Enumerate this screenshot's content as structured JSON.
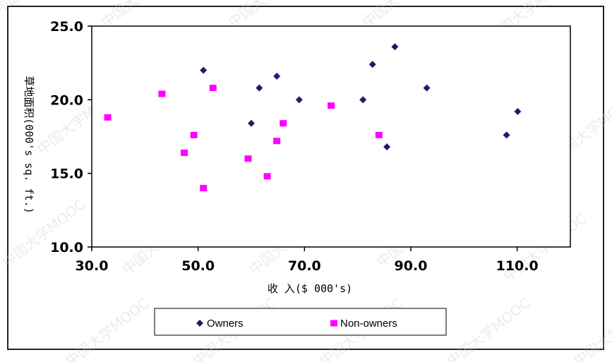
{
  "chart_data": {
    "type": "scatter",
    "title": "",
    "xlabel": "收 入($ 000's)",
    "ylabel": "草地面积(000's sq. ft.)",
    "xlim": [
      30,
      120
    ],
    "ylim": [
      10,
      25
    ],
    "xticks": [
      "30.0",
      "50.0",
      "70.0",
      "90.0",
      "110.0"
    ],
    "yticks": [
      "10.0",
      "15.0",
      "20.0",
      "25.0"
    ],
    "xtick_values": [
      30,
      50,
      70,
      90,
      110
    ],
    "ytick_values": [
      10,
      15,
      20,
      25
    ],
    "grid": false,
    "legend_position": "bottom",
    "series": [
      {
        "name": "Owners",
        "marker": "diamond",
        "color": "#1f1a6e",
        "points": [
          [
            51.0,
            22.0
          ],
          [
            60.0,
            18.4
          ],
          [
            61.5,
            20.8
          ],
          [
            64.8,
            21.6
          ],
          [
            69.0,
            20.0
          ],
          [
            81.0,
            20.0
          ],
          [
            82.8,
            22.4
          ],
          [
            85.5,
            16.8
          ],
          [
            87.0,
            23.6
          ],
          [
            93.0,
            20.8
          ],
          [
            108.0,
            17.6
          ],
          [
            110.1,
            19.2
          ]
        ]
      },
      {
        "name": "Non-owners",
        "marker": "square",
        "color": "#ff00ff",
        "points": [
          [
            33.0,
            18.8
          ],
          [
            43.2,
            20.4
          ],
          [
            47.4,
            16.4
          ],
          [
            49.2,
            17.6
          ],
          [
            51.0,
            14.0
          ],
          [
            52.8,
            20.8
          ],
          [
            59.4,
            16.0
          ],
          [
            63.0,
            14.8
          ],
          [
            64.8,
            17.2
          ],
          [
            66.0,
            18.4
          ],
          [
            75.0,
            19.6
          ],
          [
            84.0,
            17.6
          ]
        ]
      }
    ]
  },
  "watermark": "中国大学MOOC"
}
